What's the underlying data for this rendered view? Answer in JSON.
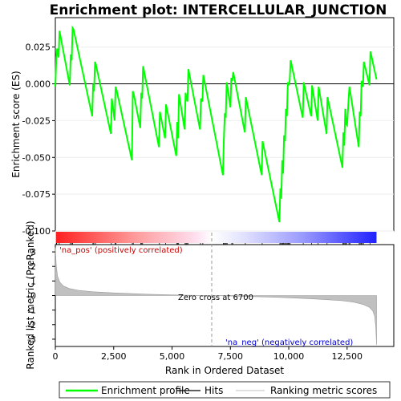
{
  "chart_data": {
    "type": "line",
    "title": "Enrichment plot: INTERCELLULAR_JUNCTION",
    "es_panel": {
      "ylabel": "Enrichment score (ES)",
      "ylim": [
        -0.1,
        0.045
      ],
      "yticks": [
        0.025,
        0.0,
        -0.025,
        -0.05,
        -0.075,
        -0.1
      ],
      "ytick_labels": [
        "0.025",
        "0.000",
        "-0.025",
        "-0.050",
        "-0.075",
        "-0.100"
      ],
      "series": [
        {
          "name": "Enrichment profile",
          "color": "#00ff00",
          "x": [
            0,
            40,
            80,
            140,
            180,
            620,
            660,
            700,
            740,
            780,
            1580,
            1620,
            1660,
            1700,
            1740,
            2380,
            2420,
            2540,
            2580,
            2620,
            3280,
            3320,
            3360,
            3640,
            3680,
            3720,
            3760,
            4440,
            4480,
            4700,
            4740,
            5180,
            5220,
            5260,
            5300,
            5540,
            5580,
            5620,
            5660,
            5700,
            6200,
            6240,
            6300,
            6340,
            7180,
            7220,
            7260,
            7300,
            7340,
            7400,
            7500,
            7540,
            7580,
            7620,
            8120,
            8160,
            8840,
            8880,
            9600,
            9640,
            9680,
            9720,
            9760,
            9800,
            9840,
            9880,
            9920,
            9960,
            10000,
            10040,
            10080,
            10600,
            10640,
            10960,
            11000,
            11240,
            11280,
            11620,
            11660,
            12300,
            12340,
            12380,
            12420,
            12460,
            12500,
            12560,
            12600,
            12640,
            13000,
            13040,
            13080,
            13120,
            13180,
            13220,
            13460,
            13500,
            13760
          ],
          "y": [
            -0.002,
            0.018,
            0.024,
            0.018,
            0.036,
            -0.001,
            0.02,
            0.016,
            0.038,
            0.037,
            -0.022,
            0.0,
            -0.005,
            0.015,
            0.013,
            -0.034,
            -0.01,
            -0.025,
            -0.002,
            -0.004,
            -0.052,
            -0.005,
            -0.007,
            -0.03,
            -0.006,
            -0.01,
            0.012,
            -0.043,
            -0.019,
            -0.037,
            -0.014,
            -0.049,
            -0.026,
            -0.037,
            -0.007,
            -0.031,
            -0.006,
            -0.01,
            -0.012,
            0.01,
            -0.031,
            -0.01,
            -0.012,
            0.006,
            -0.062,
            -0.038,
            -0.02,
            -0.023,
            0.001,
            -0.005,
            -0.016,
            0.004,
            0.002,
            0.008,
            -0.033,
            -0.009,
            -0.062,
            -0.039,
            -0.094,
            -0.071,
            -0.078,
            -0.052,
            -0.061,
            -0.035,
            -0.039,
            -0.017,
            -0.022,
            0.001,
            -0.001,
            0.002,
            0.016,
            -0.023,
            0.001,
            -0.022,
            -0.001,
            -0.025,
            -0.002,
            -0.034,
            -0.009,
            -0.057,
            -0.033,
            -0.042,
            -0.017,
            -0.027,
            -0.028,
            -0.012,
            -0.002,
            -0.006,
            -0.043,
            -0.019,
            -0.022,
            0.002,
            -0.002,
            0.015,
            -0.001,
            0.022,
            0.003
          ]
        }
      ]
    },
    "hits": {
      "name": "Hits",
      "x": [
        40,
        60,
        170,
        640,
        700,
        740,
        1610,
        1650,
        1720,
        2400,
        2560,
        2600,
        3300,
        3340,
        3660,
        3700,
        3740,
        4460,
        4720,
        5200,
        5240,
        5280,
        5560,
        5600,
        5640,
        5680,
        6220,
        6320,
        7200,
        7240,
        7280,
        7320,
        7360,
        7560,
        7600,
        8140,
        8860,
        9620,
        9660,
        9700,
        9740,
        9780,
        9820,
        9860,
        9900,
        9940,
        9980,
        10020,
        10060,
        10620,
        10980,
        11260,
        11640,
        12320,
        12360,
        12400,
        12440,
        12480,
        12580,
        12620,
        13020,
        13060,
        13100,
        13140,
        13200,
        13480
      ]
    },
    "color_band": {
      "pos_color": "#ff2020",
      "neg_color": "#2020ff",
      "mid_color": "#ffffff"
    },
    "metric_panel": {
      "ylabel": "Ranked list metric (PreRanked)",
      "xlabel": "Rank in Ordered Dataset",
      "ylim": [
        -3.5,
        3.5
      ],
      "yticks": [
        3,
        2,
        1,
        0,
        -1,
        -2,
        -3
      ],
      "ytick_labels": [
        "3",
        "2",
        "1",
        "0",
        "-1",
        "-2",
        "-3"
      ],
      "xlim": [
        0,
        14500
      ],
      "xticks": [
        0,
        2500,
        5000,
        7500,
        10000,
        12500
      ],
      "xtick_labels": [
        "0",
        "2,500",
        "5,000",
        "7,500",
        "10,000",
        "12,500"
      ],
      "profile_x": [
        0,
        40,
        100,
        200,
        350,
        600,
        1000,
        1600,
        2500,
        4000,
        5500,
        6700,
        8000,
        9500,
        10500,
        11500,
        12300,
        12800,
        13200,
        13450,
        13600,
        13680,
        13730,
        13760
      ],
      "profile_y": [
        3.3,
        2.0,
        1.3,
        0.9,
        0.65,
        0.48,
        0.36,
        0.26,
        0.18,
        0.09,
        0.03,
        0.0,
        -0.05,
        -0.12,
        -0.19,
        -0.27,
        -0.36,
        -0.46,
        -0.62,
        -0.8,
        -1.05,
        -1.4,
        -2.2,
        -3.4
      ],
      "fill_color": "#c0c0c0",
      "zero_cross_x": 6700,
      "annotations": {
        "pos_label": "'na_pos' (positively correlated)",
        "neg_label": "'na_neg' (negatively correlated)",
        "zero_label": "Zero cross at 6700"
      }
    },
    "legend": {
      "entries": [
        {
          "name": "Enrichment profile",
          "color": "#00ff00"
        },
        {
          "name": "Hits",
          "color": "#000000"
        },
        {
          "name": "Ranking metric scores",
          "color": "#c0c0c0"
        }
      ]
    }
  }
}
